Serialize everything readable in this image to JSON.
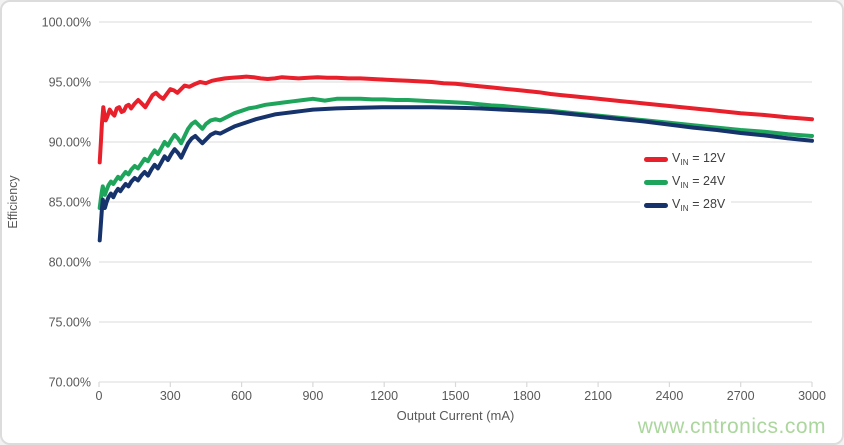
{
  "watermark": {
    "text": "www.cntronics.com",
    "color": "#abd69d"
  },
  "legend": {
    "items": [
      {
        "v": "V",
        "sub": "IN",
        "eq": " = 12V",
        "color": "#e8202c"
      },
      {
        "v": "V",
        "sub": "IN",
        "eq": " = 24V",
        "color": "#1ea55b"
      },
      {
        "v": "V",
        "sub": "IN",
        "eq": " = 28V",
        "color": "#16336b"
      }
    ]
  },
  "chart_data": {
    "type": "line",
    "title": "",
    "xlabel": "Output Current (mA)",
    "ylabel": "Efficiency",
    "xlim": [
      0,
      3000
    ],
    "ylim": [
      70,
      100
    ],
    "x_ticks": [
      0,
      300,
      600,
      900,
      1200,
      1500,
      1800,
      2100,
      2400,
      2700,
      3000
    ],
    "x_tick_labels": [
      "0",
      "300",
      "600",
      "900",
      "1200",
      "1500",
      "1800",
      "2100",
      "2400",
      "2700",
      "3000"
    ],
    "y_ticks": [
      100,
      95,
      90,
      85,
      80,
      75,
      70
    ],
    "y_tick_labels": [
      "100.00%",
      "95.00%",
      "90.00%",
      "85.00%",
      "80.00%",
      "75.00%",
      "70.00%"
    ],
    "grid": "horizontal",
    "legend_position": "right-middle",
    "axis_text_color": "#595959",
    "grid_color": "#e2e2e2",
    "series": [
      {
        "name": "VIN = 12V",
        "color": "#e8202c",
        "points": [
          [
            3,
            88.3
          ],
          [
            8,
            90.0
          ],
          [
            12,
            91.5
          ],
          [
            18,
            92.9
          ],
          [
            22,
            92.4
          ],
          [
            28,
            91.8
          ],
          [
            35,
            92.1
          ],
          [
            45,
            92.7
          ],
          [
            55,
            92.4
          ],
          [
            65,
            92.2
          ],
          [
            75,
            92.8
          ],
          [
            85,
            92.9
          ],
          [
            95,
            92.5
          ],
          [
            105,
            92.6
          ],
          [
            115,
            93.0
          ],
          [
            125,
            93.1
          ],
          [
            135,
            92.8
          ],
          [
            150,
            93.2
          ],
          [
            165,
            93.5
          ],
          [
            180,
            93.2
          ],
          [
            195,
            92.9
          ],
          [
            210,
            93.4
          ],
          [
            225,
            93.9
          ],
          [
            240,
            94.1
          ],
          [
            255,
            93.8
          ],
          [
            270,
            93.6
          ],
          [
            285,
            94.0
          ],
          [
            300,
            94.4
          ],
          [
            315,
            94.3
          ],
          [
            330,
            94.1
          ],
          [
            345,
            94.4
          ],
          [
            360,
            94.7
          ],
          [
            380,
            94.6
          ],
          [
            400,
            94.8
          ],
          [
            425,
            95.0
          ],
          [
            450,
            94.9
          ],
          [
            475,
            95.1
          ],
          [
            500,
            95.2
          ],
          [
            530,
            95.3
          ],
          [
            560,
            95.35
          ],
          [
            590,
            95.4
          ],
          [
            620,
            95.45
          ],
          [
            650,
            95.4
          ],
          [
            680,
            95.3
          ],
          [
            710,
            95.25
          ],
          [
            740,
            95.3
          ],
          [
            770,
            95.4
          ],
          [
            800,
            95.35
          ],
          [
            840,
            95.3
          ],
          [
            880,
            95.35
          ],
          [
            920,
            95.4
          ],
          [
            960,
            95.35
          ],
          [
            1000,
            95.35
          ],
          [
            1050,
            95.3
          ],
          [
            1100,
            95.3
          ],
          [
            1150,
            95.25
          ],
          [
            1200,
            95.2
          ],
          [
            1250,
            95.15
          ],
          [
            1300,
            95.1
          ],
          [
            1350,
            95.05
          ],
          [
            1400,
            95.0
          ],
          [
            1450,
            94.9
          ],
          [
            1500,
            94.85
          ],
          [
            1550,
            94.75
          ],
          [
            1600,
            94.65
          ],
          [
            1650,
            94.55
          ],
          [
            1700,
            94.45
          ],
          [
            1750,
            94.35
          ],
          [
            1800,
            94.25
          ],
          [
            1850,
            94.15
          ],
          [
            1900,
            94.0
          ],
          [
            1950,
            93.9
          ],
          [
            2000,
            93.8
          ],
          [
            2100,
            93.6
          ],
          [
            2200,
            93.4
          ],
          [
            2300,
            93.2
          ],
          [
            2400,
            93.0
          ],
          [
            2500,
            92.8
          ],
          [
            2600,
            92.6
          ],
          [
            2700,
            92.4
          ],
          [
            2800,
            92.25
          ],
          [
            2900,
            92.05
          ],
          [
            3000,
            91.9
          ]
        ]
      },
      {
        "name": "VIN = 24V",
        "color": "#1ea55b",
        "points": [
          [
            3,
            84.5
          ],
          [
            8,
            85.3
          ],
          [
            12,
            85.9
          ],
          [
            16,
            86.3
          ],
          [
            20,
            85.9
          ],
          [
            25,
            85.6
          ],
          [
            32,
            86.0
          ],
          [
            40,
            86.4
          ],
          [
            50,
            86.7
          ],
          [
            60,
            86.5
          ],
          [
            70,
            86.8
          ],
          [
            80,
            87.1
          ],
          [
            90,
            86.9
          ],
          [
            100,
            87.2
          ],
          [
            112,
            87.5
          ],
          [
            124,
            87.3
          ],
          [
            136,
            87.7
          ],
          [
            150,
            88.0
          ],
          [
            164,
            87.8
          ],
          [
            178,
            88.2
          ],
          [
            192,
            88.6
          ],
          [
            206,
            88.4
          ],
          [
            220,
            88.9
          ],
          [
            234,
            89.3
          ],
          [
            248,
            89.0
          ],
          [
            262,
            89.5
          ],
          [
            276,
            90.0
          ],
          [
            290,
            89.7
          ],
          [
            304,
            90.2
          ],
          [
            318,
            90.6
          ],
          [
            332,
            90.3
          ],
          [
            346,
            89.9
          ],
          [
            360,
            90.5
          ],
          [
            375,
            91.1
          ],
          [
            390,
            91.5
          ],
          [
            405,
            91.7
          ],
          [
            420,
            91.4
          ],
          [
            435,
            91.1
          ],
          [
            450,
            91.5
          ],
          [
            470,
            91.8
          ],
          [
            490,
            91.9
          ],
          [
            510,
            91.8
          ],
          [
            540,
            92.1
          ],
          [
            570,
            92.4
          ],
          [
            600,
            92.6
          ],
          [
            630,
            92.8
          ],
          [
            660,
            92.9
          ],
          [
            700,
            93.1
          ],
          [
            740,
            93.2
          ],
          [
            780,
            93.3
          ],
          [
            820,
            93.4
          ],
          [
            860,
            93.5
          ],
          [
            900,
            93.6
          ],
          [
            950,
            93.45
          ],
          [
            1000,
            93.6
          ],
          [
            1050,
            93.6
          ],
          [
            1100,
            93.6
          ],
          [
            1150,
            93.55
          ],
          [
            1200,
            93.55
          ],
          [
            1250,
            93.5
          ],
          [
            1300,
            93.5
          ],
          [
            1350,
            93.45
          ],
          [
            1400,
            93.4
          ],
          [
            1450,
            93.35
          ],
          [
            1500,
            93.3
          ],
          [
            1550,
            93.25
          ],
          [
            1600,
            93.15
          ],
          [
            1650,
            93.05
          ],
          [
            1700,
            93.0
          ],
          [
            1750,
            92.9
          ],
          [
            1800,
            92.8
          ],
          [
            1850,
            92.7
          ],
          [
            1900,
            92.6
          ],
          [
            1950,
            92.5
          ],
          [
            2000,
            92.4
          ],
          [
            2100,
            92.2
          ],
          [
            2200,
            92.0
          ],
          [
            2300,
            91.8
          ],
          [
            2400,
            91.6
          ],
          [
            2500,
            91.4
          ],
          [
            2600,
            91.2
          ],
          [
            2700,
            91.0
          ],
          [
            2800,
            90.85
          ],
          [
            2900,
            90.65
          ],
          [
            3000,
            90.5
          ]
        ]
      },
      {
        "name": "VIN = 28V",
        "color": "#16336b",
        "points": [
          [
            3,
            81.8
          ],
          [
            8,
            83.2
          ],
          [
            12,
            84.4
          ],
          [
            16,
            85.2
          ],
          [
            20,
            84.9
          ],
          [
            25,
            84.5
          ],
          [
            32,
            85.0
          ],
          [
            40,
            85.4
          ],
          [
            50,
            85.7
          ],
          [
            60,
            85.4
          ],
          [
            70,
            85.8
          ],
          [
            80,
            86.1
          ],
          [
            90,
            85.9
          ],
          [
            100,
            86.2
          ],
          [
            112,
            86.5
          ],
          [
            124,
            86.3
          ],
          [
            136,
            86.7
          ],
          [
            150,
            87.0
          ],
          [
            164,
            86.8
          ],
          [
            178,
            87.2
          ],
          [
            192,
            87.5
          ],
          [
            206,
            87.2
          ],
          [
            220,
            87.7
          ],
          [
            234,
            88.1
          ],
          [
            248,
            87.8
          ],
          [
            262,
            88.3
          ],
          [
            276,
            88.8
          ],
          [
            290,
            88.5
          ],
          [
            304,
            89.0
          ],
          [
            318,
            89.4
          ],
          [
            332,
            89.1
          ],
          [
            346,
            88.7
          ],
          [
            360,
            89.3
          ],
          [
            375,
            89.9
          ],
          [
            390,
            90.3
          ],
          [
            405,
            90.5
          ],
          [
            420,
            90.2
          ],
          [
            435,
            89.9
          ],
          [
            450,
            90.2
          ],
          [
            470,
            90.6
          ],
          [
            490,
            90.8
          ],
          [
            510,
            90.7
          ],
          [
            540,
            91.0
          ],
          [
            570,
            91.3
          ],
          [
            600,
            91.5
          ],
          [
            630,
            91.7
          ],
          [
            660,
            91.9
          ],
          [
            700,
            92.1
          ],
          [
            740,
            92.3
          ],
          [
            780,
            92.4
          ],
          [
            820,
            92.5
          ],
          [
            860,
            92.6
          ],
          [
            900,
            92.7
          ],
          [
            950,
            92.75
          ],
          [
            1000,
            92.8
          ],
          [
            1100,
            92.85
          ],
          [
            1200,
            92.9
          ],
          [
            1300,
            92.9
          ],
          [
            1400,
            92.9
          ],
          [
            1500,
            92.85
          ],
          [
            1600,
            92.8
          ],
          [
            1700,
            92.7
          ],
          [
            1800,
            92.6
          ],
          [
            1900,
            92.5
          ],
          [
            2000,
            92.3
          ],
          [
            2100,
            92.1
          ],
          [
            2200,
            91.9
          ],
          [
            2300,
            91.7
          ],
          [
            2400,
            91.45
          ],
          [
            2500,
            91.2
          ],
          [
            2600,
            91.0
          ],
          [
            2700,
            90.75
          ],
          [
            2800,
            90.55
          ],
          [
            2900,
            90.3
          ],
          [
            3000,
            90.1
          ]
        ]
      }
    ]
  }
}
